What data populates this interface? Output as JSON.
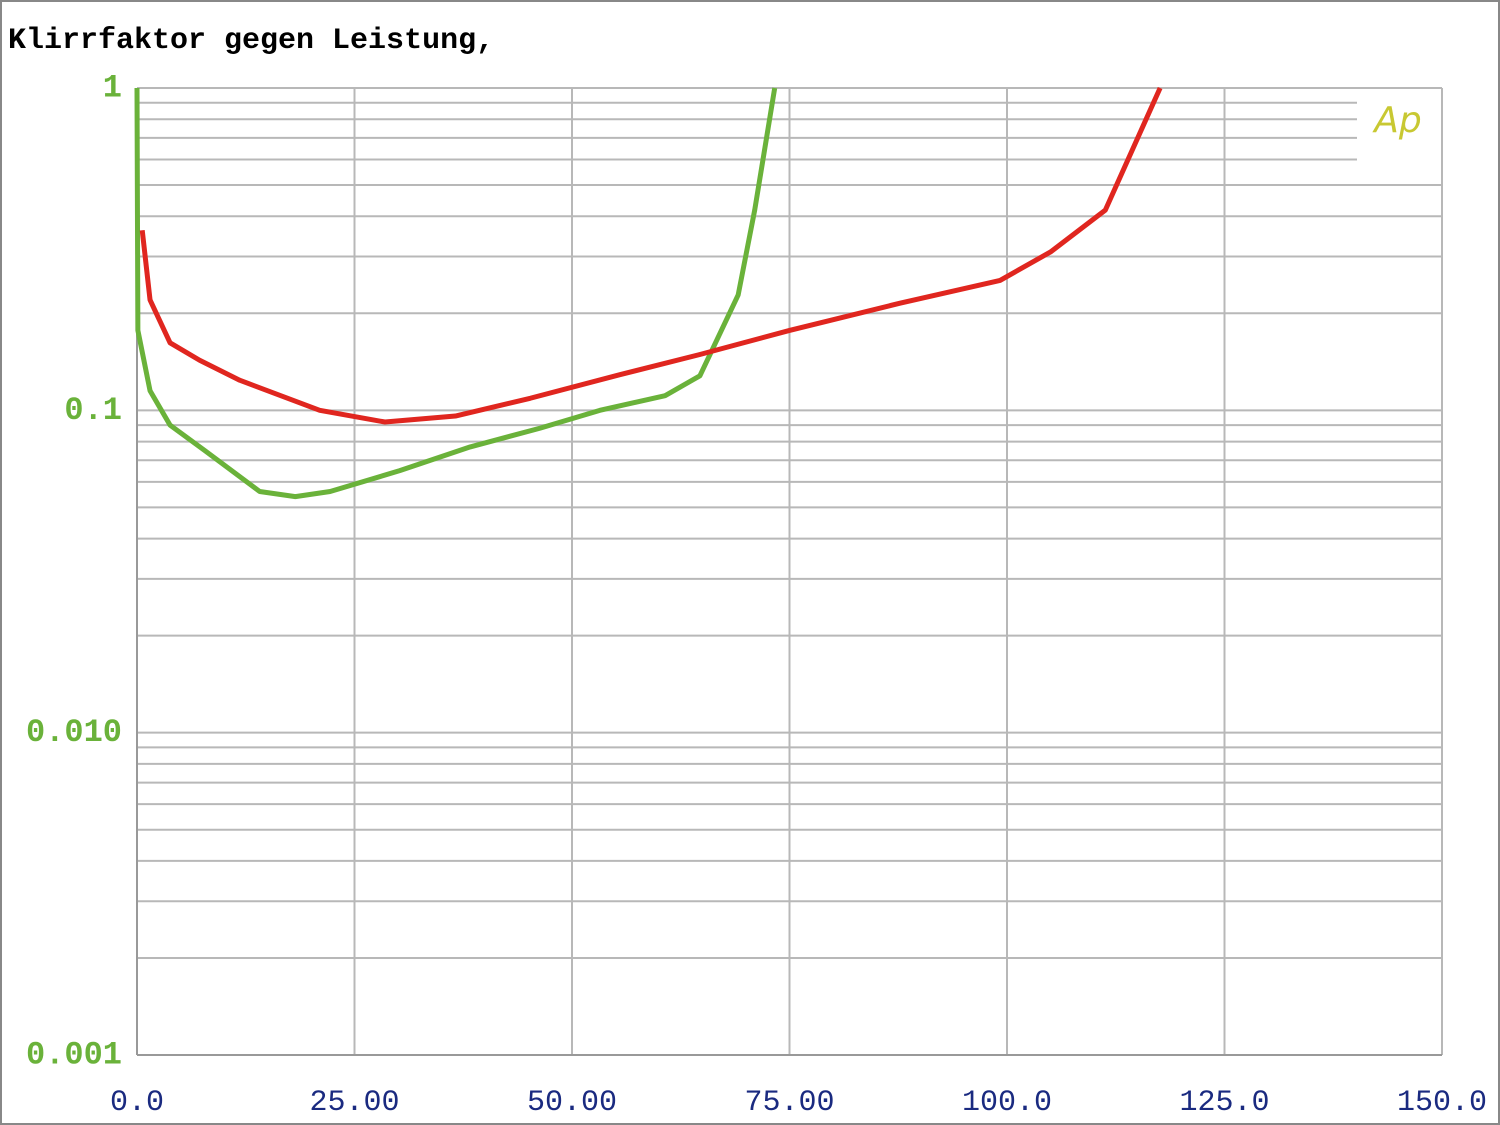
{
  "chart_data": {
    "type": "line",
    "title": "Klirrfaktor gegen Leistung,",
    "annotation": "Ap",
    "log_y": true,
    "grid": true,
    "xlim": [
      0,
      150
    ],
    "xticks": [
      {
        "value": 0,
        "label": "0.0"
      },
      {
        "value": 25,
        "label": "25.00"
      },
      {
        "value": 50,
        "label": "50.00"
      },
      {
        "value": 75,
        "label": "75.00"
      },
      {
        "value": 100,
        "label": "100.0"
      },
      {
        "value": 125,
        "label": "125.0"
      },
      {
        "value": 150,
        "label": "150.0"
      }
    ],
    "ylim": [
      0.001,
      1
    ],
    "yticks": [
      1,
      0.1,
      {
        "value": 0.01,
        "label": "0.010"
      },
      0.001
    ],
    "series": [
      {
        "color": "#6ab23a",
        "x": [
          0,
          0.1,
          1.5,
          3.8,
          7.8,
          14.1,
          18.2,
          22.2,
          30.2,
          38.3,
          46.3,
          53.2,
          60.7,
          64.7,
          69.1,
          71.0,
          73.3
        ],
        "values": [
          1.0,
          0.177,
          0.115,
          0.09,
          0.075,
          0.056,
          0.054,
          0.056,
          0.065,
          0.077,
          0.088,
          0.1,
          0.111,
          0.128,
          0.228,
          0.418,
          1.0
        ]
      },
      {
        "color": "#e0261f",
        "x": [
          0.6,
          1.5,
          3.8,
          7.2,
          11.8,
          21.0,
          28.5,
          36.6,
          45.2,
          55.5,
          64.7,
          75.0,
          87.7,
          99.2,
          105,
          111.3,
          117.6
        ],
        "values": [
          0.362,
          0.22,
          0.162,
          0.143,
          0.124,
          0.1,
          0.092,
          0.096,
          0.109,
          0.129,
          0.149,
          0.177,
          0.215,
          0.253,
          0.31,
          0.418,
          1.0
        ]
      }
    ]
  }
}
